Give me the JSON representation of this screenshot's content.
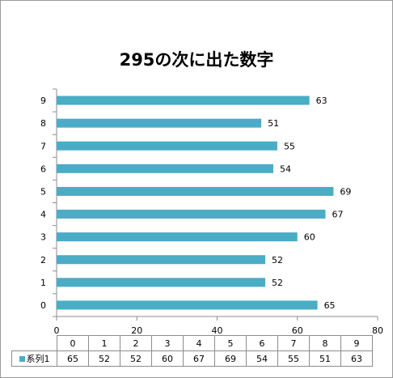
{
  "chart_data": {
    "type": "bar",
    "orientation": "horizontal",
    "title": "295の次に出た数字",
    "categories": [
      "0",
      "1",
      "2",
      "3",
      "4",
      "5",
      "6",
      "7",
      "8",
      "9"
    ],
    "series": [
      {
        "name": "系列1",
        "values": [
          65,
          52,
          52,
          60,
          67,
          69,
          54,
          55,
          51,
          63
        ],
        "color": "#4bacc6"
      }
    ],
    "xlim": [
      0,
      80
    ],
    "x_ticks": [
      0,
      20,
      40,
      60,
      80
    ],
    "data_labels": true,
    "grid": false,
    "data_table": true
  }
}
